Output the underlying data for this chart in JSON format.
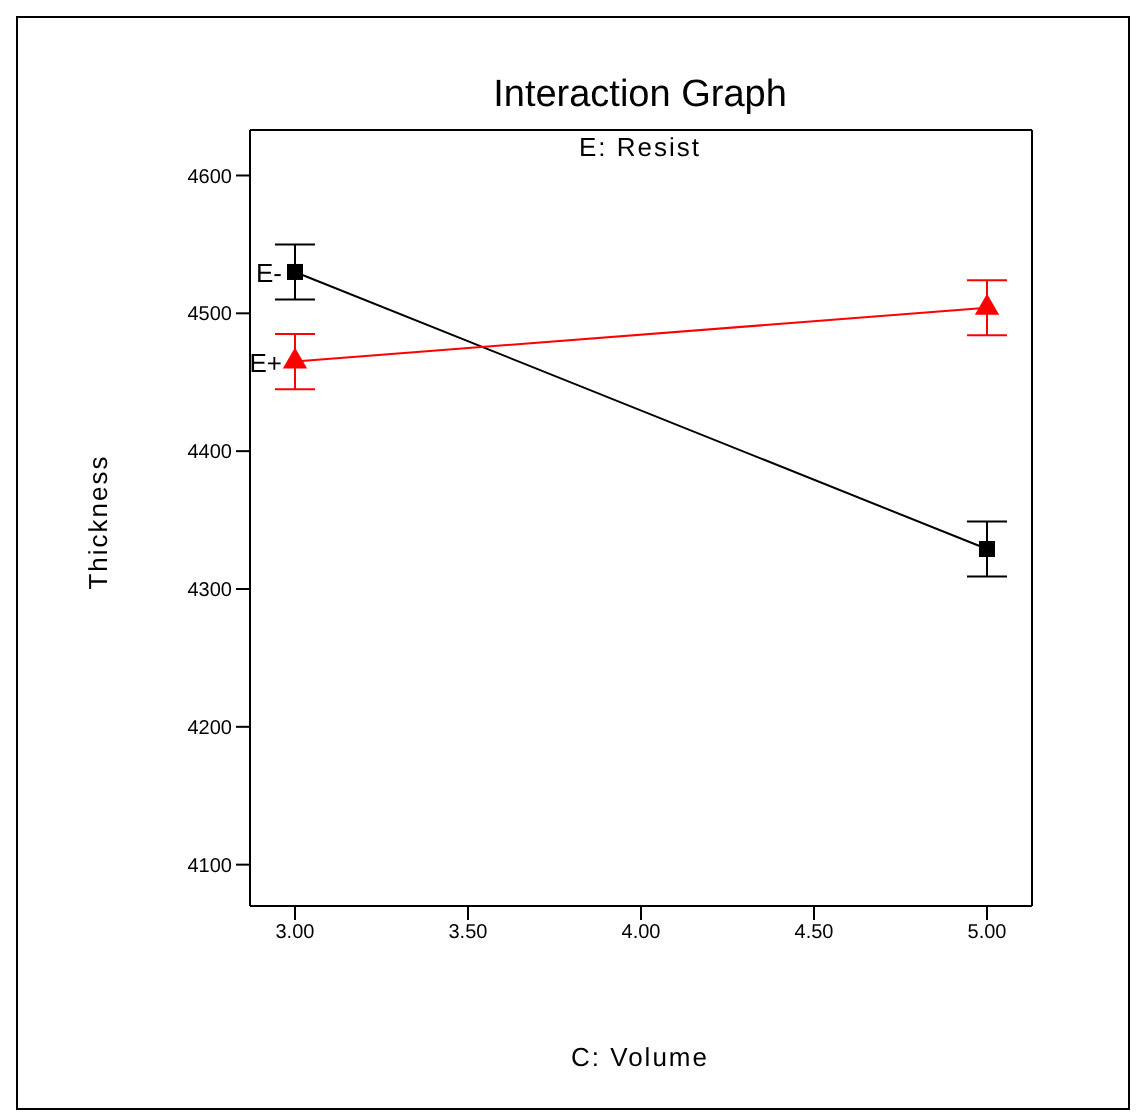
{
  "chart_data": {
    "type": "line",
    "title": "Interaction Graph",
    "subtitle": "E: Resist",
    "xlabel": "C: Volume",
    "ylabel": "Thickness",
    "x": [
      3,
      5
    ],
    "series": [
      {
        "name": "E-",
        "color": "#000000",
        "marker": "square",
        "values": [
          4530,
          4329
        ],
        "errors": [
          20,
          20
        ]
      },
      {
        "name": "E+",
        "color": "#ff0000",
        "marker": "triangle",
        "values": [
          4465,
          4504
        ],
        "errors": [
          20,
          20
        ]
      }
    ],
    "xlim": [
      2.87,
      5.13
    ],
    "xticks": [
      {
        "value": 3,
        "label": "3.00"
      },
      {
        "value": 3.5,
        "label": "3.50"
      },
      {
        "value": 4,
        "label": "4.00"
      },
      {
        "value": 4.5,
        "label": "4.50"
      },
      {
        "value": 5,
        "label": "5.00"
      }
    ],
    "ylim": [
      4070,
      4633
    ],
    "yticks": [
      4100,
      4200,
      4300,
      4400,
      4500,
      4600
    ],
    "grid": false,
    "legend": false
  }
}
